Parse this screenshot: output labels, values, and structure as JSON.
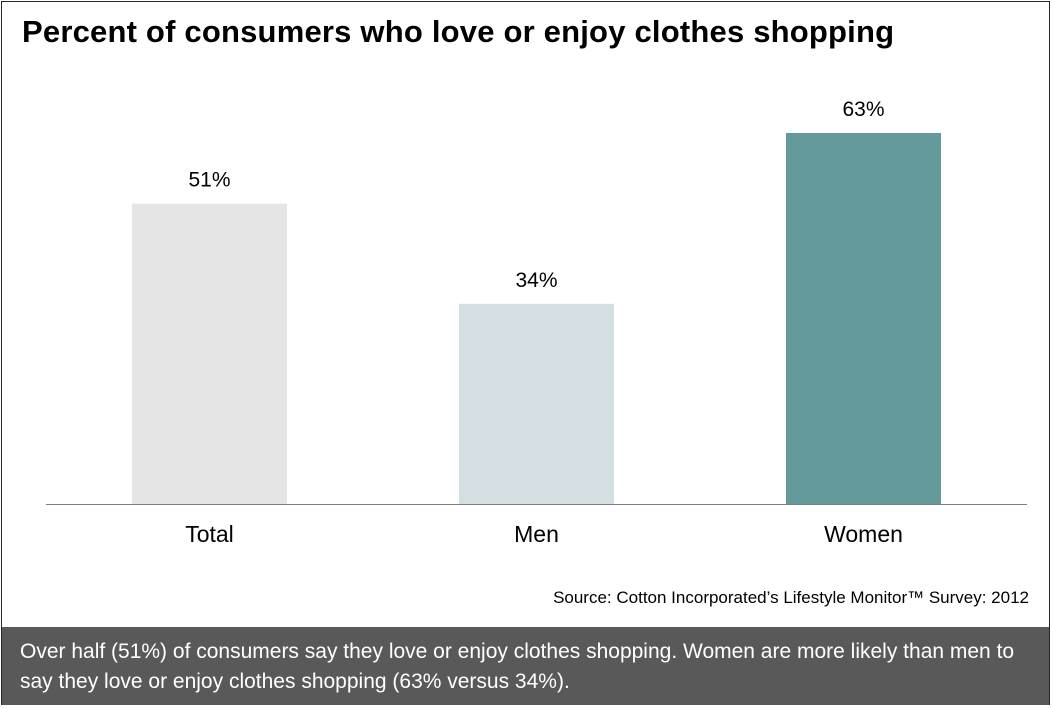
{
  "title": "Percent of consumers who love or enjoy clothes shopping",
  "source": "Source: Cotton Incorporated’s Lifestyle Monitor™ Survey: 2012",
  "caption": "Over half (51%) of consumers say they love or enjoy clothes shopping.  Women are more likely than men to say they love or enjoy clothes shopping (63% versus 34%).",
  "colors": {
    "bars": [
      "#e5e5e5",
      "#d4dfe4",
      "#659a9a"
    ],
    "axis": "#7f7f7f",
    "caption_bg": "#595959"
  },
  "chart_data": {
    "type": "bar",
    "title": "Percent of consumers who love or enjoy clothes shopping",
    "categories": [
      "Total",
      "Men",
      "Women"
    ],
    "values": [
      51,
      34,
      63
    ],
    "data_labels": [
      "51%",
      "34%",
      "63%"
    ],
    "ylim": [
      0,
      63
    ],
    "grid": false,
    "legend": "none"
  }
}
